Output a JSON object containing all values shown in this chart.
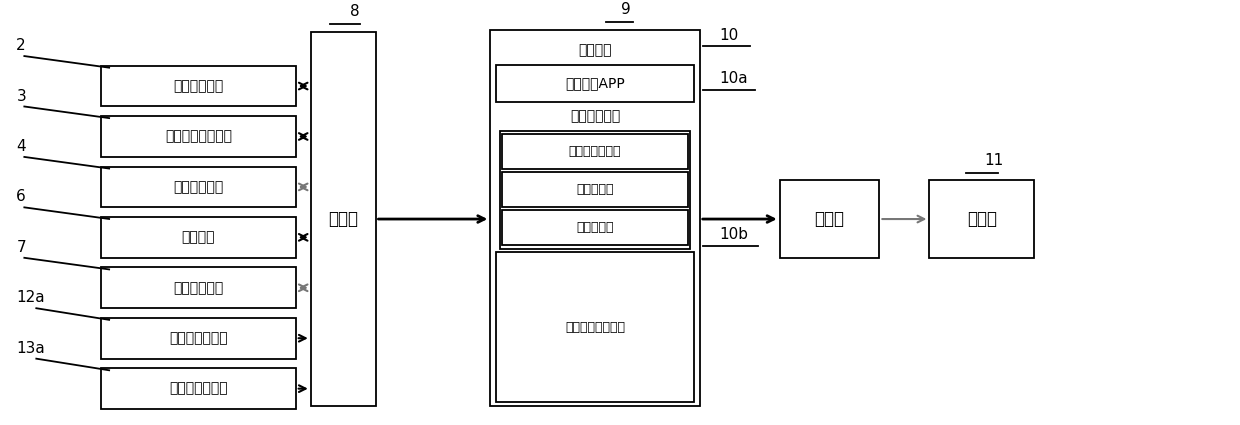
{
  "fig_w": 12.4,
  "fig_h": 4.25,
  "dpi": 100,
  "bg": "#ffffff",
  "lw": 1.3,
  "fs": 11,
  "fs_small": 10,
  "fs_num": 11,
  "black": "#000000",
  "gray": "#777777",
  "left_items": [
    {
      "label": "坐垫调节机构",
      "num": "2",
      "bidirectional": true,
      "gray_arrow": false,
      "one_way": false
    },
    {
      "label": "座椅靠背调节机构",
      "num": "3",
      "bidirectional": true,
      "gray_arrow": false,
      "one_way": false
    },
    {
      "label": "直线滑动机构",
      "num": "4",
      "bidirectional": true,
      "gray_arrow": true,
      "one_way": false
    },
    {
      "label": "顶升机构",
      "num": "6",
      "bidirectional": true,
      "gray_arrow": false,
      "one_way": false
    },
    {
      "label": "自动开盖机构",
      "num": "7",
      "bidirectional": true,
      "gray_arrow": true,
      "one_way": false
    },
    {
      "label": "坐垫厚度传感器",
      "num": "12a",
      "bidirectional": false,
      "gray_arrow": false,
      "one_way": true
    },
    {
      "label": "靠背厚度传感器",
      "num": "13a",
      "bidirectional": false,
      "gray_arrow": false,
      "one_way": true
    }
  ],
  "smart_sub": [
    {
      "label": "智能终端",
      "is_header": true,
      "has_border": false
    },
    {
      "label": "座椅调节APP",
      "is_header": false,
      "has_border": true
    },
    {
      "label": "座椅调节模块",
      "is_header": false,
      "has_border": false
    },
    {
      "label": "三维座椅调节室",
      "is_header": false,
      "has_border": true,
      "inner": true
    },
    {
      "label": "语音调节室",
      "is_header": false,
      "has_border": true,
      "inner": true
    },
    {
      "label": "自动调节室",
      "is_header": false,
      "has_border": true,
      "inner": true
    },
    {
      "label": "座椅误差调节模块",
      "is_header": false,
      "has_border": true
    }
  ]
}
